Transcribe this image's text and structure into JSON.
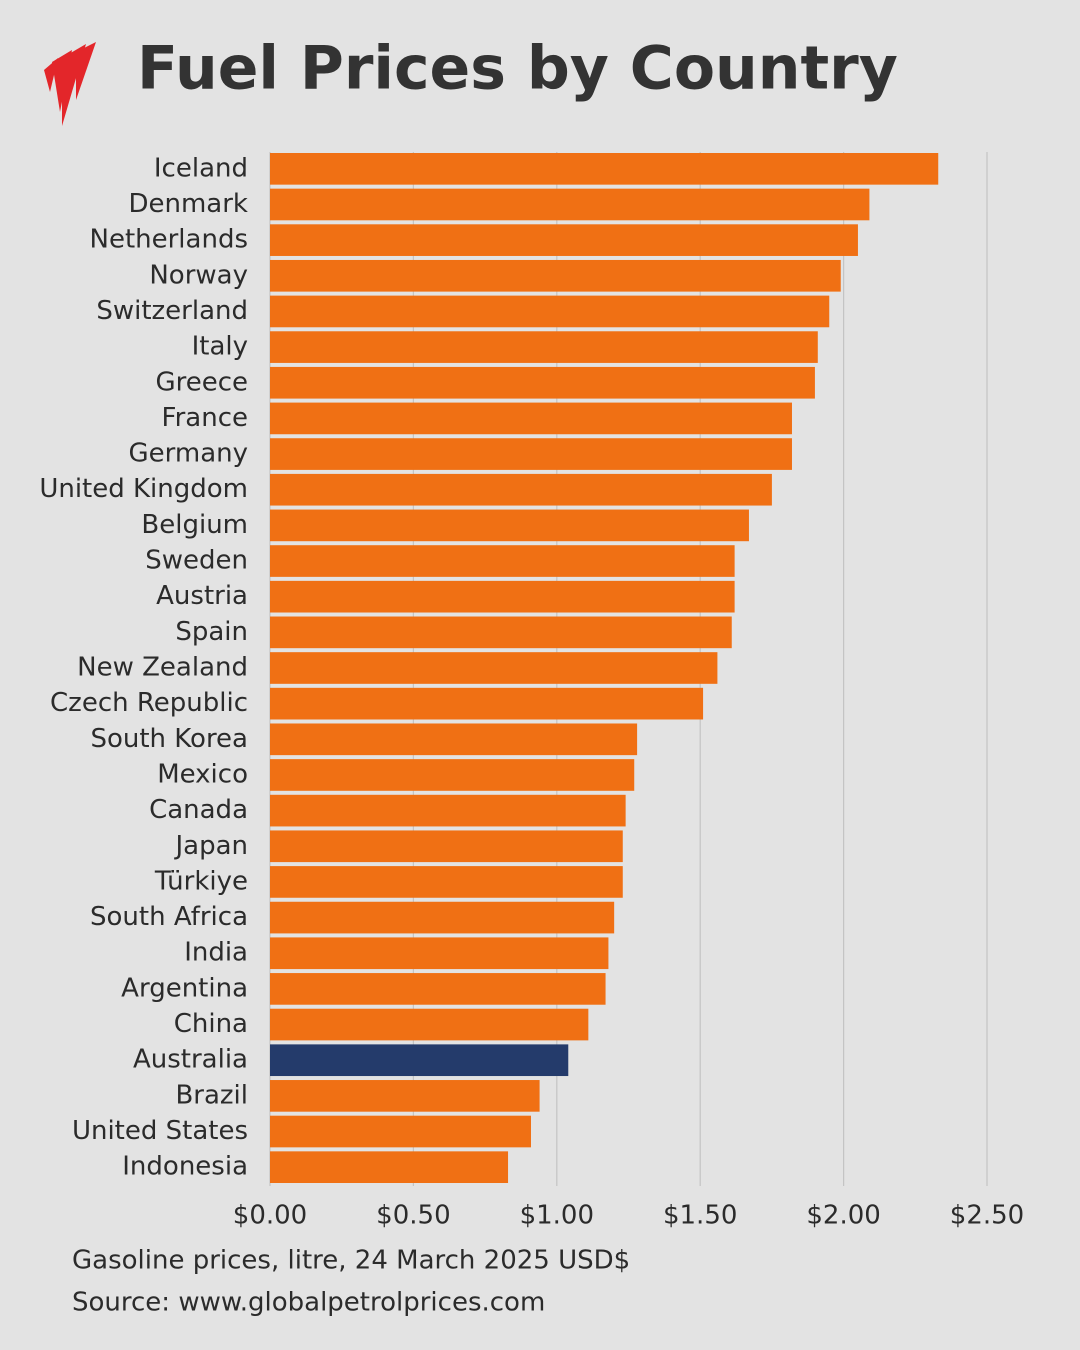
{
  "chart_data": {
    "type": "bar",
    "orientation": "horizontal",
    "title": "Fuel Prices by Country",
    "subtitle": "Gasoline prices, litre, 24 March 2025 USD$",
    "source": "Source: www.globalpetrolprices.com",
    "categories": [
      "Iceland",
      "Denmark",
      "Netherlands",
      "Norway",
      "Switzerland",
      "Italy",
      "Greece",
      "France",
      "Germany",
      "United Kingdom",
      "Belgium",
      "Sweden",
      "Austria",
      "Spain",
      "New Zealand",
      "Czech Republic",
      "South Korea",
      "Mexico",
      "Canada",
      "Japan",
      "Türkiye",
      "South Africa",
      "India",
      "Argentina",
      "China",
      "Australia",
      "Brazil",
      "United States",
      "Indonesia"
    ],
    "values": [
      2.33,
      2.09,
      2.05,
      1.99,
      1.95,
      1.91,
      1.9,
      1.82,
      1.82,
      1.75,
      1.67,
      1.62,
      1.62,
      1.61,
      1.56,
      1.51,
      1.28,
      1.27,
      1.24,
      1.23,
      1.23,
      1.2,
      1.18,
      1.17,
      1.11,
      1.04,
      0.94,
      0.91,
      0.83
    ],
    "colors": [
      "#f07014",
      "#f07014",
      "#f07014",
      "#f07014",
      "#f07014",
      "#f07014",
      "#f07014",
      "#f07014",
      "#f07014",
      "#f07014",
      "#f07014",
      "#f07014",
      "#f07014",
      "#f07014",
      "#f07014",
      "#f07014",
      "#f07014",
      "#f07014",
      "#f07014",
      "#f07014",
      "#f07014",
      "#f07014",
      "#f07014",
      "#f07014",
      "#f07014",
      "#243b6b",
      "#f07014",
      "#f07014",
      "#f07014"
    ],
    "xlim": [
      0,
      2.5
    ],
    "xticks": [
      {
        "value": 0,
        "label": "$0.00"
      },
      {
        "value": 0.5,
        "label": "$0.50"
      },
      {
        "value": 1,
        "label": "$1.00"
      },
      {
        "value": 1.5,
        "label": "$1.50"
      },
      {
        "value": 2,
        "label": "$2.00"
      },
      {
        "value": 2.5,
        "label": "$2.50"
      }
    ],
    "grid": true
  }
}
